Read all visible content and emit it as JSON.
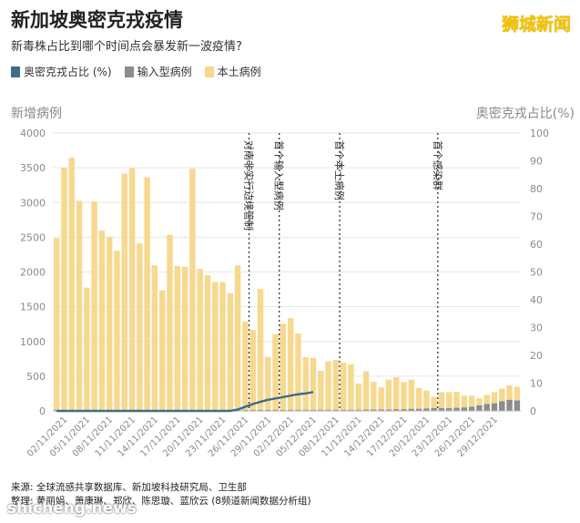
{
  "header": {
    "title": "新加坡奥密克戎疫情",
    "subtitle": "新毒株占比到哪个时间点会暴发新一波疫情?",
    "brand": "狮城新闻"
  },
  "colors": {
    "omicron": "#3c6e87",
    "imported": "#8c8c8c",
    "local": "#f7d88f"
  },
  "legend": [
    {
      "label": "奥密克戎占比 (%)",
      "color": "#3c6e87"
    },
    {
      "label": "输入型病例",
      "color": "#8c8c8c"
    },
    {
      "label": "本土病例",
      "color": "#f7d88f"
    }
  ],
  "chart_data": {
    "type": "bar",
    "ylabel": "新增病例",
    "y2label": "奥密克戎占比(%)",
    "ylim": [
      0,
      4000
    ],
    "y2lim": [
      0,
      100
    ],
    "yticks": [
      "0",
      "500",
      "1000",
      "1500",
      "2000",
      "2500",
      "3000",
      "3500",
      "4000"
    ],
    "y2ticks": [
      "0",
      "10",
      "20",
      "30",
      "40",
      "50",
      "60",
      "70",
      "80",
      "90",
      "100"
    ],
    "xticklabels": [
      "02/11/2021",
      "05/11/2021",
      "08/11/2021",
      "11/11/2021",
      "14/11/2021",
      "17/11/2021",
      "20/11/2021",
      "23/11/2021",
      "26/11/2021",
      "29/11/2021",
      "02/12/2021",
      "05/12/2021",
      "08/12/2021",
      "11/12/2021",
      "14/12/2021",
      "17/12/2021",
      "20/12/2021",
      "23/12/2021",
      "26/12/2021",
      "29/12/2021"
    ],
    "start_date": "2021-11-01",
    "local": [
      2470,
      3490,
      3630,
      3010,
      1760,
      3000,
      2580,
      2490,
      2290,
      3400,
      3480,
      2400,
      3350,
      2080,
      1720,
      2520,
      2070,
      2060,
      3470,
      2030,
      1940,
      1840,
      1840,
      1680,
      2080,
      1270,
      1150,
      1740,
      760,
      1090,
      1240,
      1320,
      1100,
      760,
      750,
      560,
      700,
      720,
      680,
      660,
      380,
      550,
      400,
      320,
      430,
      460,
      390,
      420,
      300,
      260,
      160,
      230,
      230,
      230,
      170,
      160,
      100,
      130,
      160,
      180,
      210,
      200
    ],
    "imported": [
      15,
      15,
      15,
      15,
      15,
      15,
      15,
      15,
      15,
      15,
      15,
      15,
      15,
      15,
      15,
      15,
      15,
      15,
      15,
      15,
      15,
      15,
      15,
      15,
      15,
      15,
      15,
      15,
      15,
      15,
      15,
      15,
      15,
      15,
      15,
      15,
      15,
      15,
      15,
      15,
      15,
      20,
      20,
      20,
      20,
      25,
      25,
      30,
      30,
      35,
      40,
      40,
      40,
      45,
      50,
      60,
      80,
      100,
      110,
      140,
      160,
      150
    ],
    "omicron_pct": [
      0,
      0,
      0,
      0,
      0,
      0,
      0,
      0,
      0,
      0,
      0,
      0,
      0,
      0,
      0,
      0,
      0,
      0,
      0,
      0,
      0,
      0,
      0,
      0,
      0.5,
      1.5,
      2.5,
      3.3,
      4,
      4.5,
      5,
      5.5,
      6,
      6.3,
      6.8
    ],
    "annotations": [
      {
        "date_index": 25,
        "label": "对南非实行边境管制"
      },
      {
        "date_index": 29,
        "label": "首个输入型病例"
      },
      {
        "date_index": 37,
        "label": "首个本土病例"
      },
      {
        "date_index": 50,
        "label": "首个感染群"
      }
    ],
    "imported_only_from_index": 53
  },
  "footer": {
    "source": "来源: 全球流感共享数据库、新加坡科技研究局、卫生部",
    "credit": "整理: 黄丽娟、萧康琳、郑欣、陈思璇、蓝欣云 (8频道新闻数据分析组)",
    "watermark": "shicheng.news"
  }
}
